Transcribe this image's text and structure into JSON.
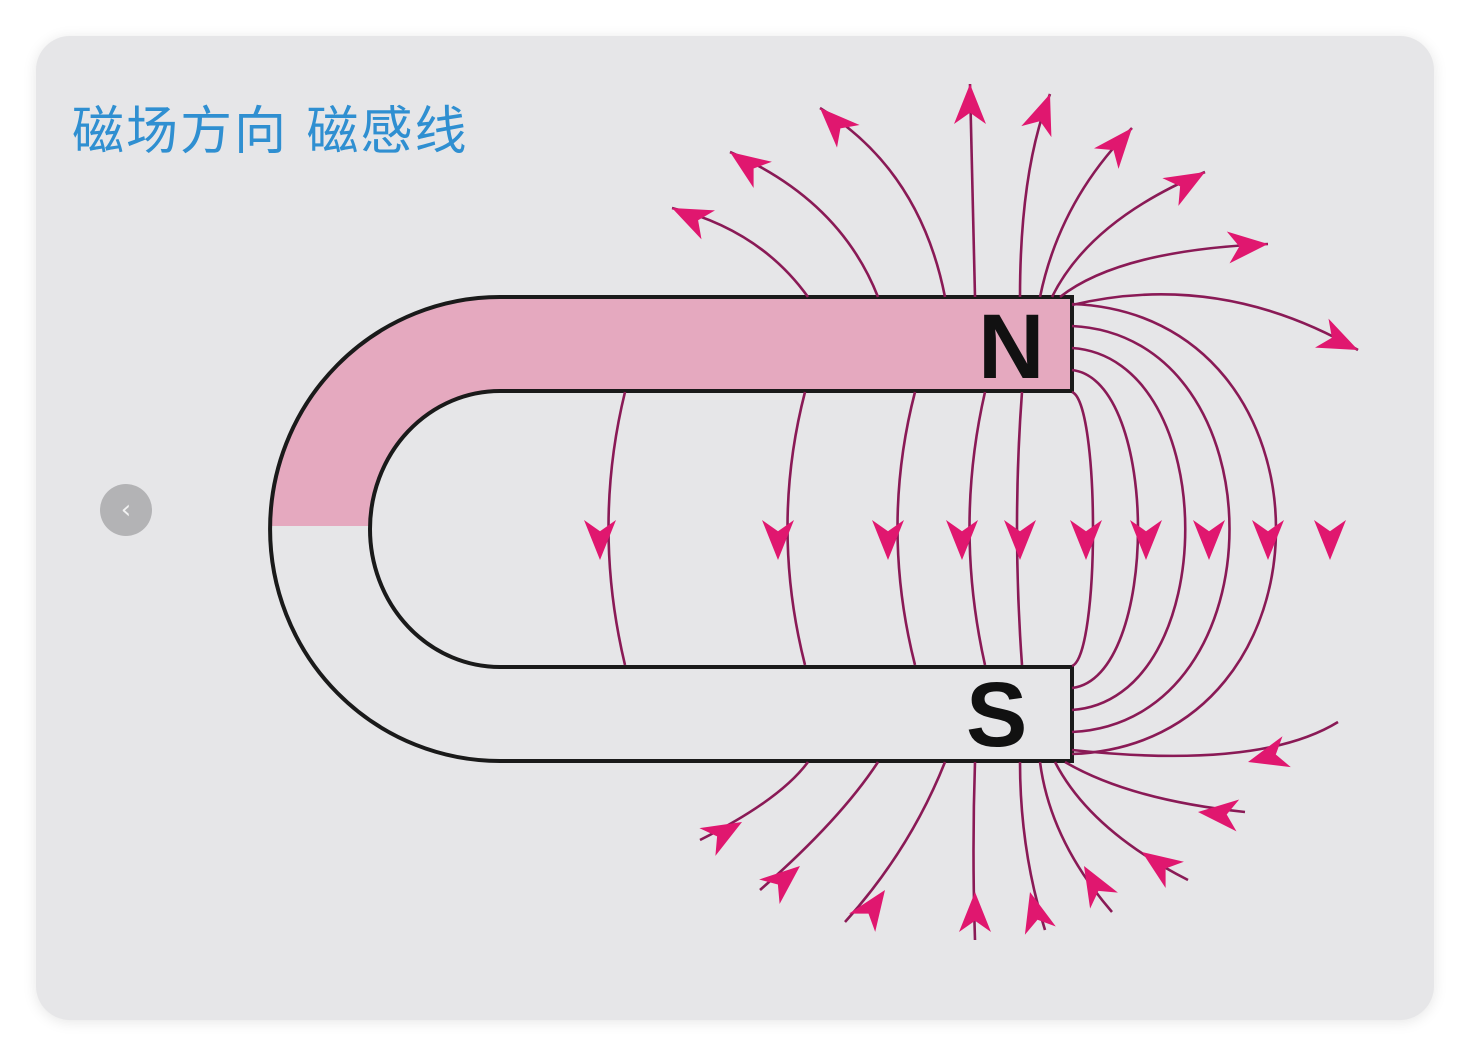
{
  "slide": {
    "title": "磁场方向 磁感线"
  },
  "nav": {
    "prev_icon": "chevron-left-icon",
    "prev_glyph": "‹"
  },
  "diagram": {
    "north_label": "N",
    "south_label": "S",
    "colors": {
      "north_half": "#e5a9bf",
      "south_half": "#e6e6e8",
      "outline": "#1a1a1a",
      "field_line": "#8a1a56",
      "arrow": "#e0176f"
    }
  }
}
